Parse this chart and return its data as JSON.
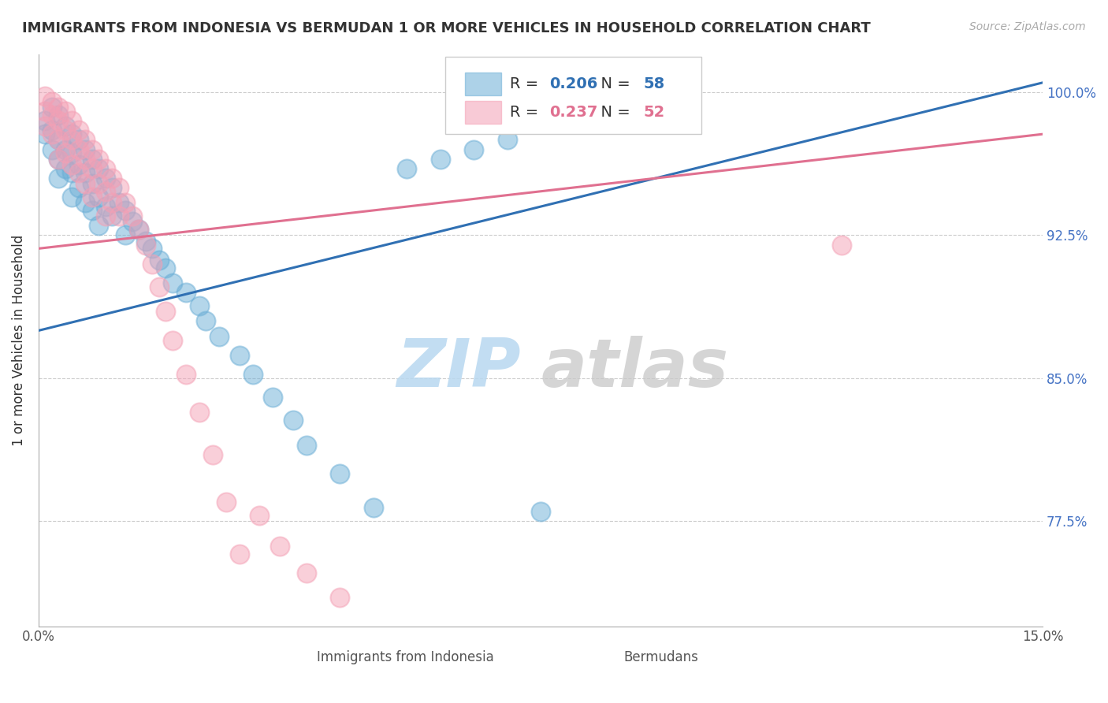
{
  "title": "IMMIGRANTS FROM INDONESIA VS BERMUDAN 1 OR MORE VEHICLES IN HOUSEHOLD CORRELATION CHART",
  "source": "Source: ZipAtlas.com",
  "ylabel": "1 or more Vehicles in Household",
  "xlim": [
    0.0,
    0.15
  ],
  "ylim": [
    0.72,
    1.02
  ],
  "yticks": [
    0.775,
    0.85,
    0.925,
    1.0
  ],
  "yticklabels": [
    "77.5%",
    "85.0%",
    "92.5%",
    "100.0%"
  ],
  "blue_R": 0.206,
  "blue_N": 58,
  "pink_R": 0.237,
  "pink_N": 52,
  "blue_color": "#6baed6",
  "pink_color": "#f4a0b5",
  "blue_line_color": "#3070b3",
  "pink_line_color": "#e07090",
  "watermark_zip": "ZIP",
  "watermark_atlas": "atlas",
  "blue_x": [
    0.001,
    0.001,
    0.002,
    0.002,
    0.002,
    0.003,
    0.003,
    0.003,
    0.003,
    0.004,
    0.004,
    0.004,
    0.005,
    0.005,
    0.005,
    0.005,
    0.006,
    0.006,
    0.006,
    0.007,
    0.007,
    0.007,
    0.008,
    0.008,
    0.008,
    0.009,
    0.009,
    0.009,
    0.01,
    0.01,
    0.011,
    0.011,
    0.012,
    0.013,
    0.013,
    0.014,
    0.015,
    0.016,
    0.017,
    0.018,
    0.019,
    0.02,
    0.022,
    0.024,
    0.025,
    0.027,
    0.03,
    0.032,
    0.035,
    0.038,
    0.04,
    0.045,
    0.05,
    0.055,
    0.06,
    0.065,
    0.07,
    0.075
  ],
  "blue_y": [
    0.985,
    0.978,
    0.992,
    0.98,
    0.97,
    0.988,
    0.975,
    0.965,
    0.955,
    0.982,
    0.97,
    0.96,
    0.978,
    0.968,
    0.958,
    0.945,
    0.975,
    0.962,
    0.95,
    0.97,
    0.958,
    0.942,
    0.965,
    0.952,
    0.938,
    0.96,
    0.945,
    0.93,
    0.955,
    0.94,
    0.95,
    0.935,
    0.942,
    0.938,
    0.925,
    0.932,
    0.928,
    0.922,
    0.918,
    0.912,
    0.908,
    0.9,
    0.895,
    0.888,
    0.88,
    0.872,
    0.862,
    0.852,
    0.84,
    0.828,
    0.815,
    0.8,
    0.782,
    0.96,
    0.965,
    0.97,
    0.975,
    0.78
  ],
  "pink_x": [
    0.001,
    0.001,
    0.001,
    0.002,
    0.002,
    0.002,
    0.003,
    0.003,
    0.003,
    0.003,
    0.004,
    0.004,
    0.004,
    0.005,
    0.005,
    0.005,
    0.006,
    0.006,
    0.006,
    0.007,
    0.007,
    0.007,
    0.008,
    0.008,
    0.008,
    0.009,
    0.009,
    0.01,
    0.01,
    0.01,
    0.011,
    0.011,
    0.012,
    0.012,
    0.013,
    0.014,
    0.015,
    0.016,
    0.017,
    0.018,
    0.019,
    0.02,
    0.022,
    0.024,
    0.026,
    0.028,
    0.03,
    0.033,
    0.036,
    0.04,
    0.045,
    0.12
  ],
  "pink_y": [
    0.998,
    0.99,
    0.982,
    0.995,
    0.988,
    0.978,
    0.992,
    0.985,
    0.975,
    0.965,
    0.99,
    0.98,
    0.968,
    0.985,
    0.975,
    0.962,
    0.98,
    0.97,
    0.958,
    0.975,
    0.965,
    0.952,
    0.97,
    0.96,
    0.945,
    0.965,
    0.952,
    0.96,
    0.948,
    0.935,
    0.955,
    0.942,
    0.95,
    0.935,
    0.942,
    0.935,
    0.928,
    0.92,
    0.91,
    0.898,
    0.885,
    0.87,
    0.852,
    0.832,
    0.81,
    0.785,
    0.758,
    0.778,
    0.762,
    0.748,
    0.735,
    0.92
  ],
  "blue_line_x0": 0.0,
  "blue_line_y0": 0.875,
  "blue_line_x1": 0.15,
  "blue_line_y1": 1.005,
  "pink_line_x0": 0.0,
  "pink_line_y0": 0.918,
  "pink_line_x1": 0.15,
  "pink_line_y1": 0.978
}
